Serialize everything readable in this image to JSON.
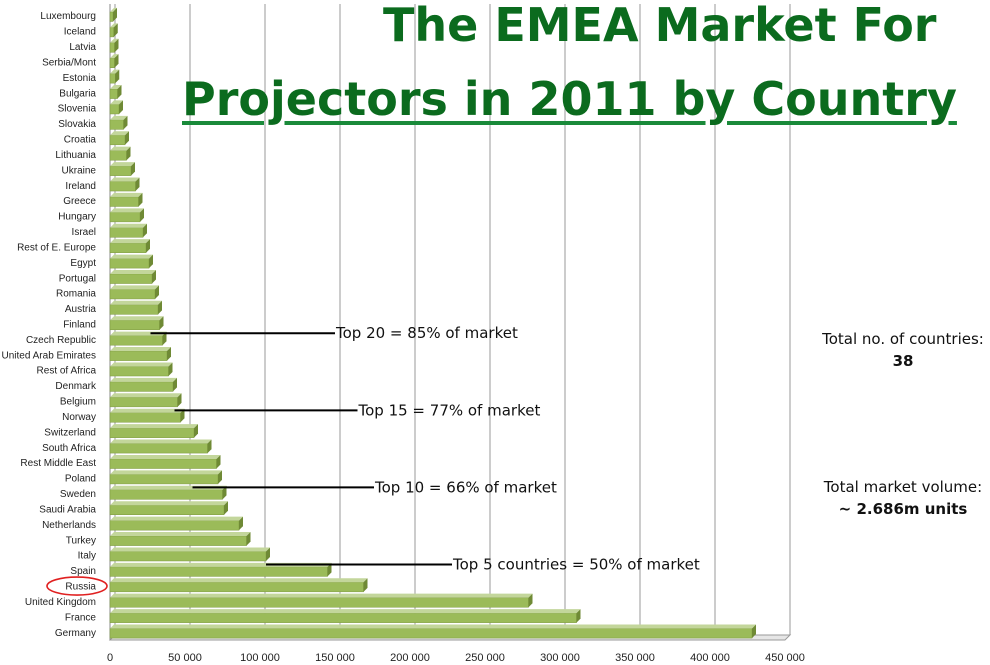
{
  "title": {
    "line1": "The EMEA Market For",
    "line2": "Projectors in 2011 by Country"
  },
  "notes": {
    "countries_label": "Total no. of countries:",
    "countries_value": "38",
    "volume_label": "Total market volume:",
    "volume_value": "~ 2.686m units"
  },
  "highlight": {
    "country": "Russia",
    "color": "#e02020"
  },
  "colors": {
    "bar": "#9bbb59",
    "bar_top": "#c3d69b",
    "bar_side": "#6f8a35",
    "title": "#0b6b1e"
  },
  "chart_data": {
    "type": "bar",
    "orientation": "horizontal",
    "title": "The EMEA Market For Projectors in 2011 by Country",
    "xlim": [
      0,
      450000
    ],
    "x_ticks": [
      0,
      50000,
      100000,
      150000,
      200000,
      250000,
      300000,
      350000,
      400000,
      450000
    ],
    "x_tick_labels": [
      "0",
      "50 000",
      "100 000",
      "150 000",
      "200 000",
      "250 000",
      "300 000",
      "350 000",
      "400 000",
      "450 000"
    ],
    "grid": true,
    "categories": [
      "Luxembourg",
      "Iceland",
      "Latvia",
      "Serbia/Mont",
      "Estonia",
      "Bulgaria",
      "Slovenia",
      "Slovakia",
      "Croatia",
      "Lithuania",
      "Ukraine",
      "Ireland",
      "Greece",
      "Hungary",
      "Israel",
      "Rest of E. Europe",
      "Egypt",
      "Portugal",
      "Romania",
      "Austria",
      "Finland",
      "Czech Republic",
      "United Arab Emirates",
      "Rest of Africa",
      "Denmark",
      "Belgium",
      "Norway",
      "Switzerland",
      "South Africa",
      "Rest Middle East",
      "Poland",
      "Sweden",
      "Saudi Arabia",
      "Netherlands",
      "Turkey",
      "Italy",
      "Spain",
      "Russia",
      "United Kingdom",
      "France",
      "Germany"
    ],
    "values": [
      2000,
      2500,
      3000,
      3000,
      3500,
      5000,
      6000,
      9000,
      10000,
      11000,
      14000,
      17000,
      19000,
      20000,
      22000,
      24000,
      26000,
      28000,
      30000,
      32000,
      33000,
      35000,
      38000,
      39000,
      42000,
      45000,
      47000,
      56000,
      65000,
      71000,
      72000,
      75000,
      76000,
      86000,
      91000,
      104000,
      145000,
      169000,
      279000,
      311000,
      428000
    ],
    "annotations": [
      {
        "text": "Top 20 = 85% of market",
        "anchor_category": "Czech Republic",
        "anchor_value": 27000,
        "label_value": 150000
      },
      {
        "text": "Top 15 = 77% of market",
        "anchor_category": "Norway",
        "anchor_value": 43000,
        "label_value": 165000
      },
      {
        "text": "Top 10 = 66% of market",
        "anchor_category": "Sweden",
        "anchor_value": 55000,
        "label_value": 176000
      },
      {
        "text": "Top 5 countries = 50% of market",
        "anchor_category": "Spain",
        "anchor_value": 104000,
        "label_value": 228000
      }
    ]
  }
}
